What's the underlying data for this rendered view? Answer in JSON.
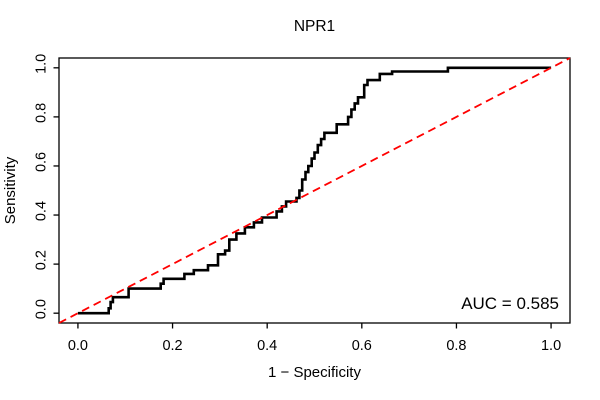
{
  "figure": {
    "background": "#ffffff",
    "frame_color": "#000000"
  },
  "chart_data": {
    "type": "line",
    "subtype": "roc-step-curve",
    "title": "NPR1",
    "xlabel": "1 − Specificity",
    "ylabel": "Sensitivity",
    "annotation": "AUC = 0.585",
    "auc": 0.585,
    "grid": false,
    "legend": "none",
    "xlim": [
      -0.04,
      1.04
    ],
    "ylim": [
      -0.04,
      1.04
    ],
    "x_ticks": {
      "values": [
        0,
        0.2,
        0.4,
        0.6,
        0.8,
        1.0
      ],
      "labels": [
        "0.0",
        "0.2",
        "0.4",
        "0.6",
        "0.8",
        "1.0"
      ]
    },
    "y_ticks": {
      "values": [
        0,
        0.2,
        0.4,
        0.6,
        0.8,
        1.0
      ],
      "labels": [
        "0.0",
        "0.2",
        "0.4",
        "0.6",
        "0.8",
        "1.0"
      ]
    },
    "series": [
      {
        "name": "ROC curve",
        "color": "#000000",
        "style": "solid",
        "width": 2.6,
        "points": [
          [
            0,
            0
          ],
          [
            0.065,
            0
          ],
          [
            0.065,
            0.02
          ],
          [
            0.069,
            0.02
          ],
          [
            0.069,
            0.045
          ],
          [
            0.074,
            0.045
          ],
          [
            0.074,
            0.065
          ],
          [
            0.107,
            0.065
          ],
          [
            0.107,
            0.1
          ],
          [
            0.175,
            0.1
          ],
          [
            0.175,
            0.12
          ],
          [
            0.181,
            0.12
          ],
          [
            0.181,
            0.14
          ],
          [
            0.225,
            0.14
          ],
          [
            0.225,
            0.16
          ],
          [
            0.245,
            0.16
          ],
          [
            0.245,
            0.175
          ],
          [
            0.275,
            0.175
          ],
          [
            0.275,
            0.195
          ],
          [
            0.296,
            0.195
          ],
          [
            0.296,
            0.24
          ],
          [
            0.311,
            0.24
          ],
          [
            0.311,
            0.255
          ],
          [
            0.32,
            0.255
          ],
          [
            0.32,
            0.3
          ],
          [
            0.335,
            0.3
          ],
          [
            0.335,
            0.325
          ],
          [
            0.353,
            0.325
          ],
          [
            0.353,
            0.35
          ],
          [
            0.372,
            0.35
          ],
          [
            0.372,
            0.37
          ],
          [
            0.389,
            0.37
          ],
          [
            0.389,
            0.39
          ],
          [
            0.42,
            0.39
          ],
          [
            0.42,
            0.415
          ],
          [
            0.431,
            0.415
          ],
          [
            0.431,
            0.435
          ],
          [
            0.44,
            0.435
          ],
          [
            0.44,
            0.455
          ],
          [
            0.462,
            0.455
          ],
          [
            0.462,
            0.47
          ],
          [
            0.468,
            0.47
          ],
          [
            0.468,
            0.5
          ],
          [
            0.474,
            0.5
          ],
          [
            0.474,
            0.545
          ],
          [
            0.481,
            0.545
          ],
          [
            0.481,
            0.575
          ],
          [
            0.487,
            0.575
          ],
          [
            0.487,
            0.6
          ],
          [
            0.494,
            0.6
          ],
          [
            0.494,
            0.63
          ],
          [
            0.5,
            0.63
          ],
          [
            0.5,
            0.655
          ],
          [
            0.507,
            0.655
          ],
          [
            0.507,
            0.685
          ],
          [
            0.514,
            0.685
          ],
          [
            0.514,
            0.71
          ],
          [
            0.521,
            0.71
          ],
          [
            0.521,
            0.735
          ],
          [
            0.547,
            0.735
          ],
          [
            0.547,
            0.77
          ],
          [
            0.571,
            0.77
          ],
          [
            0.571,
            0.8
          ],
          [
            0.578,
            0.8
          ],
          [
            0.578,
            0.83
          ],
          [
            0.585,
            0.83
          ],
          [
            0.585,
            0.855
          ],
          [
            0.592,
            0.855
          ],
          [
            0.592,
            0.88
          ],
          [
            0.605,
            0.88
          ],
          [
            0.605,
            0.93
          ],
          [
            0.612,
            0.93
          ],
          [
            0.612,
            0.95
          ],
          [
            0.638,
            0.95
          ],
          [
            0.638,
            0.975
          ],
          [
            0.664,
            0.975
          ],
          [
            0.664,
            0.985
          ],
          [
            0.782,
            0.985
          ],
          [
            0.782,
            1
          ],
          [
            1,
            1
          ]
        ]
      },
      {
        "name": "chance diagonal",
        "color": "#FF0000",
        "style": "dashed",
        "width": 1.8,
        "points": [
          [
            -0.04,
            -0.04
          ],
          [
            1.04,
            1.04
          ]
        ]
      }
    ]
  }
}
